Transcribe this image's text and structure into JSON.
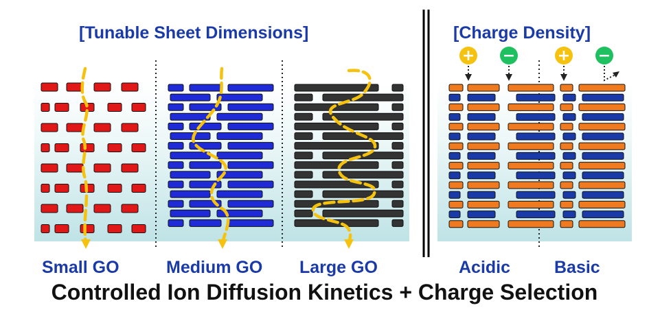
{
  "headings": {
    "left": "[Tunable Sheet Dimensions]",
    "right": "[Charge Density]"
  },
  "labels": {
    "small": "Small GO",
    "medium": "Medium GO",
    "large": "Large GO",
    "acidic": "Acidic",
    "basic": "Basic"
  },
  "caption": "Controlled Ion Diffusion Kinetics + Charge Selection",
  "charges": [
    "+",
    "−",
    "+",
    "−"
  ],
  "colors": {
    "small_sheet": "#e01818",
    "medium_sheet": "#1f2bd6",
    "large_sheet": "#333333",
    "acidic_sheet": "#f07a20",
    "basic_sheet": "#1a3aa8",
    "ion_path": "#f5c20f",
    "positive_ion": "#f5c20f",
    "negative_ion": "#1fc060",
    "text": "#1a3aa8"
  },
  "icons": [
    "plus-icon",
    "minus-icon",
    "arrow-down-icon"
  ]
}
